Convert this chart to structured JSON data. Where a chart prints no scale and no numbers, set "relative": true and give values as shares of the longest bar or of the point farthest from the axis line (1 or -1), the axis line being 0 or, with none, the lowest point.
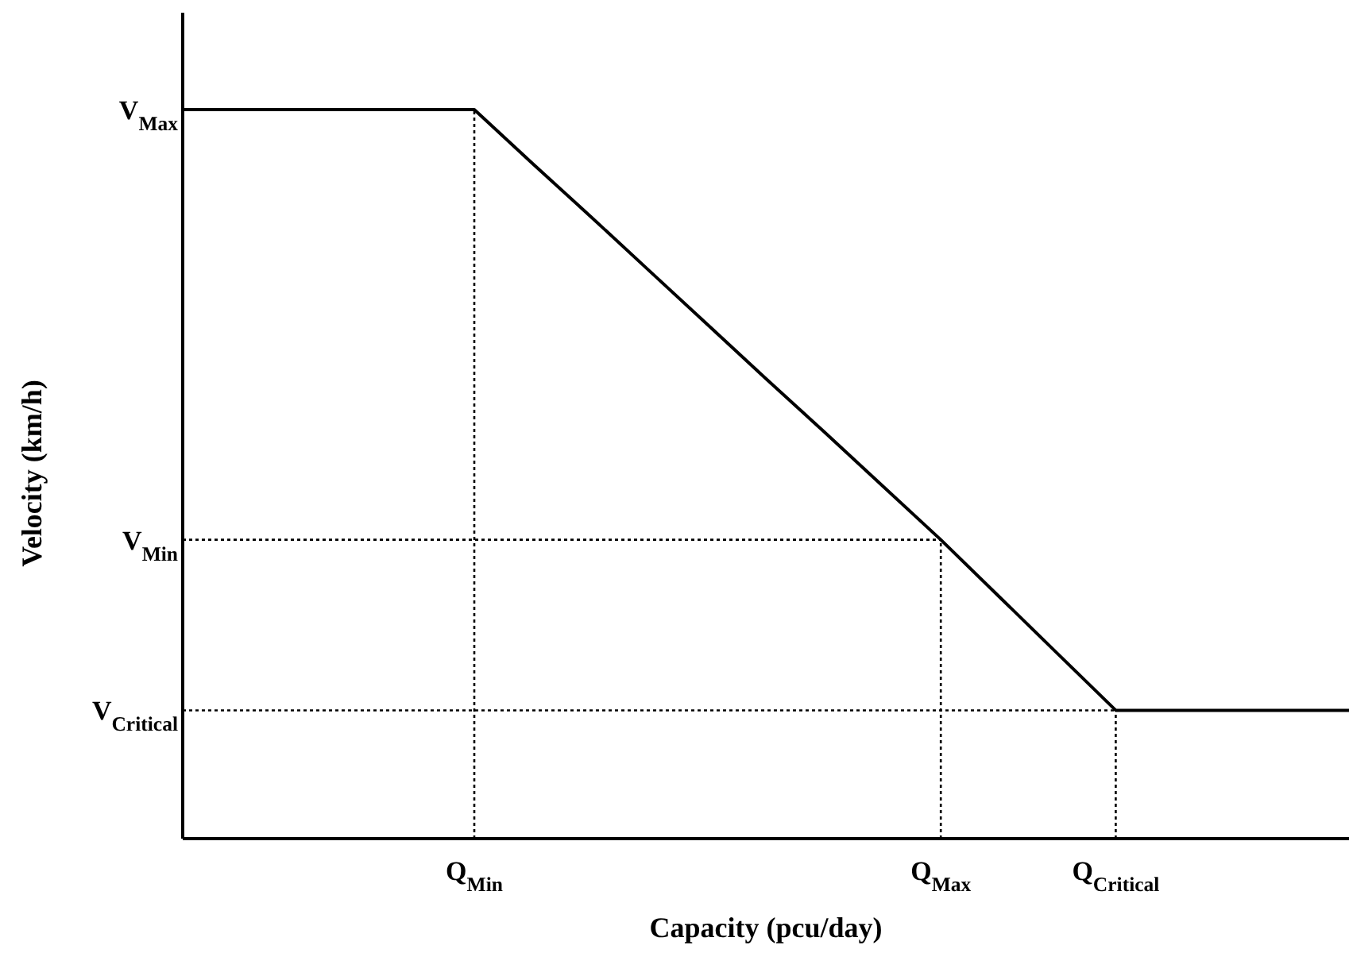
{
  "chart_data": {
    "type": "line",
    "relative": true,
    "xlabel": "Capacity (pcu/day)",
    "ylabel": "Velocity (km/h)",
    "categories": [
      null,
      null,
      null,
      null,
      null,
      "Q$_{Min}$",
      null,
      null,
      null,
      null,
      null,
      null,
      null,
      "Q$_{Max}$",
      null,
      null,
      "Q$_{Critical}$",
      null,
      null,
      null,
      null
    ],
    "values": [
      1,
      1,
      1,
      1,
      1,
      1,
      0.926,
      0.853,
      0.779,
      0.705,
      0.631,
      0.558,
      0.484,
      0.41,
      0.332,
      0.254,
      0.176,
      0.176,
      0.176,
      0.176,
      0.176
    ],
    "color": "#000000",
    "marker": "none",
    "line_style": "solid",
    "grid": false,
    "legend": false,
    "ref_lines": [
      {
        "axis": "y",
        "value": 0.41,
        "label": "V$_{Min}$",
        "line_style": "dotted",
        "color": "#000000"
      },
      {
        "axis": "y",
        "value": 0.176,
        "label": "V$_{Critical}$",
        "line_style": "dotted",
        "color": "#000000"
      },
      {
        "axis": "y",
        "value": 1,
        "label": "V$_{Max}$",
        "line_style": "dotted",
        "color": "#000000"
      },
      {
        "axis": "x",
        "value": "Q$_{Min}$",
        "line_style": "dotted",
        "color": "#000000"
      },
      {
        "axis": "x",
        "value": "Q$_{Max}$",
        "line_style": "dotted",
        "color": "#000000"
      },
      {
        "axis": "x",
        "value": "Q$_{Critical}$",
        "line_style": "dotted",
        "color": "#000000"
      }
    ]
  }
}
